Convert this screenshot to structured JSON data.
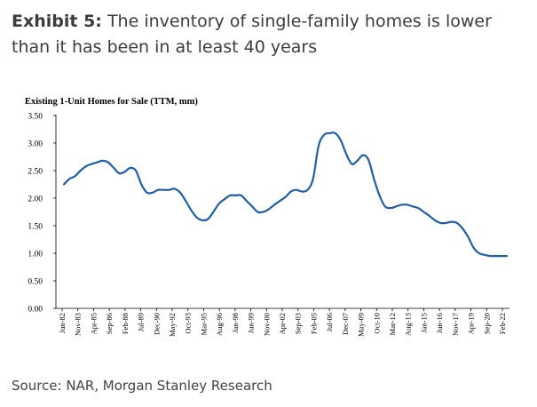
{
  "header": {
    "exhibit_label": "Exhibit 5:",
    "headline": "The inventory of single-family homes is lower than it has been in at least 40 years"
  },
  "source": "Source: NAR, Morgan Stanley Research",
  "chart_data": {
    "type": "line",
    "subtitle": "Existing 1-Unit Homes for Sale (TTM, mm)",
    "xlabel": "",
    "ylabel": "",
    "ylim": [
      0,
      3.5
    ],
    "y_ticks": [
      "0.00",
      "0.50",
      "1.00",
      "1.50",
      "2.00",
      "2.50",
      "3.00",
      "3.50"
    ],
    "x_tick_labels": [
      "Jun-82",
      "Nov-83",
      "Apr-85",
      "Sep-86",
      "Feb-88",
      "Jul-89",
      "Dec-90",
      "May-92",
      "Oct-93",
      "Mar-95",
      "Aug-96",
      "Jan-98",
      "Jun-99",
      "Nov-00",
      "Apr-02",
      "Sep-03",
      "Feb-05",
      "Jul-06",
      "Dec-07",
      "May-09",
      "Oct-10",
      "Mar-12",
      "Aug-13",
      "Jan-15",
      "Jun-16",
      "Nov-17",
      "Apr-19",
      "Sep-20",
      "Feb-22"
    ],
    "line_color": "#1f5fa8",
    "grid": false,
    "series": [
      {
        "x": [
          1982.5,
          1983.0,
          1983.5,
          1984.0,
          1984.5,
          1985.0,
          1985.5,
          1986.0,
          1986.5,
          1987.0,
          1987.5,
          1988.0,
          1988.5,
          1989.0,
          1989.5,
          1990.0,
          1990.5,
          1991.0,
          1991.5,
          1992.0,
          1992.5,
          1993.0,
          1993.5,
          1994.0,
          1994.5,
          1995.0,
          1995.5,
          1996.0,
          1996.5,
          1997.0,
          1997.5,
          1998.0,
          1998.5,
          1999.0,
          1999.5,
          2000.0,
          2000.5,
          2001.0,
          2001.5,
          2002.0,
          2002.5,
          2003.0,
          2003.5,
          2004.0,
          2004.5,
          2005.0,
          2005.5,
          2006.0,
          2006.5,
          2007.0,
          2007.5,
          2008.0,
          2008.5,
          2009.0,
          2009.5,
          2010.0,
          2010.5,
          2011.0,
          2011.5,
          2012.0,
          2012.5,
          2013.0,
          2013.5,
          2014.0,
          2014.5,
          2015.0,
          2015.5,
          2016.0,
          2016.5,
          2017.0,
          2017.5,
          2018.0,
          2018.5,
          2019.0,
          2019.5,
          2020.0,
          2020.5,
          2021.0,
          2021.5,
          2022.0,
          2022.5
        ],
        "values": [
          2.25,
          2.35,
          2.4,
          2.5,
          2.58,
          2.62,
          2.65,
          2.68,
          2.65,
          2.55,
          2.45,
          2.48,
          2.55,
          2.5,
          2.25,
          2.1,
          2.1,
          2.15,
          2.15,
          2.15,
          2.17,
          2.1,
          1.95,
          1.78,
          1.65,
          1.6,
          1.62,
          1.75,
          1.9,
          1.98,
          2.05,
          2.05,
          2.05,
          1.95,
          1.85,
          1.75,
          1.75,
          1.8,
          1.88,
          1.95,
          2.02,
          2.12,
          2.15,
          2.12,
          2.15,
          2.35,
          2.95,
          3.15,
          3.18,
          3.18,
          3.05,
          2.8,
          2.62,
          2.68,
          2.78,
          2.7,
          2.35,
          2.05,
          1.85,
          1.82,
          1.85,
          1.88,
          1.88,
          1.85,
          1.82,
          1.75,
          1.68,
          1.6,
          1.55,
          1.55,
          1.57,
          1.55,
          1.45,
          1.3,
          1.1,
          1.0,
          0.97,
          0.95,
          0.95,
          0.95,
          0.95
        ]
      }
    ]
  }
}
